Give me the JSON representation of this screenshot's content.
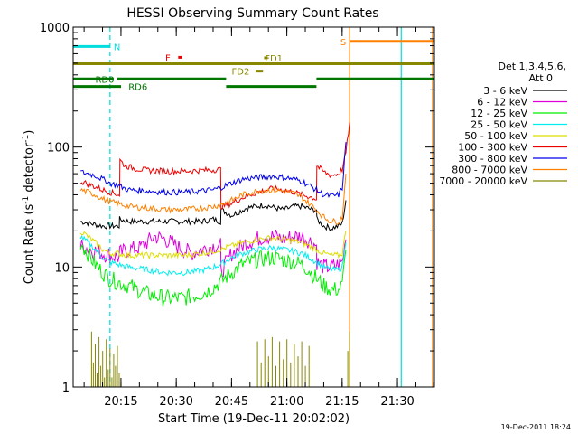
{
  "chart_data": {
    "type": "line",
    "title": "HESSI Observing Summary Count Rates",
    "xlabel": "Start Time (19-Dec-11 20:02:02)",
    "ylabel_main": "Count Rate (s",
    "ylabel_sup1": "-1",
    "ylabel_mid": " detector",
    "ylabel_sup2": "-1",
    "ylabel_end": ")",
    "yscale": "log",
    "ylim": [
      1,
      1000
    ],
    "xlim_minutes": [
      0,
      98
    ],
    "x_ticks": [
      {
        "t": 12.97,
        "label": "20:15"
      },
      {
        "t": 27.97,
        "label": "20:30"
      },
      {
        "t": 42.97,
        "label": "20:45"
      },
      {
        "t": 57.97,
        "label": "21:00"
      },
      {
        "t": 72.97,
        "label": "21:15"
      },
      {
        "t": 87.97,
        "label": "21:30"
      }
    ],
    "y_ticks": [
      {
        "v": 1,
        "label": "1"
      },
      {
        "v": 10,
        "label": "10"
      },
      {
        "v": 100,
        "label": "100"
      },
      {
        "v": 1000,
        "label": "1000"
      }
    ],
    "legend": {
      "header1": "Det 1,3,4,5,6,",
      "header2": "Att 0",
      "placement": "right"
    },
    "series": [
      {
        "name": "3 - 6 keV",
        "color": "#000000",
        "x": [
          2,
          5,
          8,
          10,
          12.5,
          12.6,
          15,
          20,
          25,
          30,
          35,
          38,
          40,
          40.1,
          43,
          47,
          52,
          55,
          57,
          60,
          62,
          65,
          66,
          66.1,
          68,
          70,
          72,
          73,
          74
        ],
        "y": [
          24,
          23,
          22,
          22,
          22,
          25,
          24,
          24,
          24,
          24,
          24,
          25,
          24,
          30,
          27,
          31,
          33,
          31,
          30,
          32,
          32,
          30,
          30,
          25,
          22,
          21,
          22,
          23,
          36
        ]
      },
      {
        "name": "6 - 12 keV",
        "color": "#dd00dd",
        "x": [
          2,
          5,
          8,
          10,
          12.5,
          12.6,
          15,
          18,
          20,
          22,
          25,
          28,
          30,
          32,
          35,
          38,
          40,
          40.1,
          43,
          47,
          52,
          55,
          57,
          60,
          62,
          65,
          66,
          66.1,
          68,
          70,
          72,
          73,
          74
        ],
        "y": [
          15,
          14,
          13,
          12.5,
          12,
          13,
          14,
          14.5,
          16,
          18,
          17,
          15,
          14,
          13,
          14,
          15,
          15,
          9,
          13,
          16,
          18,
          18,
          17,
          18,
          18,
          16,
          15,
          11,
          10,
          10,
          10.5,
          11,
          17
        ]
      },
      {
        "name": "12 - 25 keV",
        "color": "#00ee00",
        "x": [
          2,
          4,
          6,
          8,
          10,
          12,
          15,
          20,
          25,
          30,
          33,
          36,
          38,
          40,
          43,
          46,
          50,
          54,
          57,
          60,
          62,
          64,
          66,
          68,
          70,
          72,
          73,
          74
        ],
        "y": [
          16,
          13,
          10.5,
          9,
          8,
          7.5,
          7,
          6,
          5.5,
          5.5,
          5.8,
          6.2,
          6.8,
          7.5,
          9,
          10.5,
          11.5,
          12,
          11.5,
          11,
          10.5,
          9.5,
          8,
          7,
          6.5,
          6.5,
          7,
          14
        ]
      },
      {
        "name": "25 - 50 keV",
        "color": "#00eeee",
        "x": [
          2,
          4,
          6,
          8,
          10,
          12,
          15,
          20,
          25,
          30,
          33,
          36,
          38,
          40,
          43,
          46,
          50,
          54,
          57,
          60,
          62,
          64,
          66,
          68,
          70,
          72,
          73,
          74
        ],
        "y": [
          18,
          16,
          14,
          12,
          11,
          10.5,
          10,
          9.5,
          9,
          9,
          9.2,
          9.5,
          10,
          10.5,
          12,
          13,
          14,
          14.5,
          14,
          13.5,
          13,
          12,
          11,
          10,
          9.5,
          9.5,
          10,
          16
        ]
      },
      {
        "name": "50 - 100 keV",
        "color": "#dddd00",
        "x": [
          2,
          4,
          6,
          8,
          10,
          12,
          15,
          20,
          25,
          30,
          35,
          40,
          43,
          46,
          50,
          54,
          57,
          60,
          62,
          64,
          66,
          68,
          70,
          72,
          73,
          74
        ],
        "y": [
          20,
          18,
          16,
          14,
          13,
          13,
          12.5,
          12.5,
          12.5,
          12.5,
          13,
          14,
          15,
          16,
          17,
          17.5,
          17,
          16.5,
          16,
          15,
          14,
          13,
          12.5,
          12.5,
          13,
          20
        ]
      },
      {
        "name": "100 - 300 keV",
        "color": "#ee0000",
        "x": [
          2,
          5,
          8,
          10,
          12.6,
          12.7,
          14,
          17,
          20,
          25,
          30,
          35,
          40,
          40.1,
          43,
          46,
          50,
          54,
          57,
          60,
          62,
          65,
          66,
          66.1,
          68,
          70,
          72,
          73,
          74,
          75
        ],
        "y": [
          52,
          48,
          44,
          42,
          40,
          78,
          70,
          66,
          64,
          63,
          63,
          64,
          65,
          32,
          34,
          38,
          42,
          45,
          44,
          42,
          40,
          38,
          37,
          70,
          62,
          58,
          60,
          65,
          90,
          160
        ]
      },
      {
        "name": "300 - 800 keV",
        "color": "#0000ee",
        "x": [
          2,
          4,
          6,
          8,
          10,
          12,
          15,
          20,
          25,
          30,
          35,
          38,
          40,
          43,
          46,
          50,
          54,
          57,
          60,
          62,
          64,
          66,
          68,
          70,
          72,
          73,
          74
        ],
        "y": [
          62,
          60,
          58,
          54,
          50,
          48,
          44,
          43,
          42,
          42,
          43,
          44,
          46,
          50,
          54,
          56,
          57,
          56,
          54,
          52,
          48,
          44,
          40,
          39,
          40,
          45,
          110
        ]
      },
      {
        "name": "800 - 7000 keV",
        "color": "#ff8000",
        "x": [
          2,
          4,
          6,
          8,
          10,
          12,
          15,
          20,
          25,
          30,
          35,
          38,
          40,
          43,
          46,
          50,
          54,
          57,
          60,
          62,
          64,
          66,
          68,
          70,
          72,
          73,
          74
        ],
        "y": [
          44,
          42,
          40,
          37,
          35,
          34,
          32,
          31,
          30,
          30,
          31,
          32,
          33,
          36,
          40,
          43,
          44,
          43,
          41,
          38,
          34,
          30,
          26,
          24,
          24,
          26,
          60
        ]
      },
      {
        "name": "7000 - 20000 keV",
        "color": "#888800",
        "x": [
          5,
          5.5,
          6,
          6.5,
          7,
          7.5,
          8,
          8.5,
          9,
          9.5,
          10,
          10.5,
          11,
          11.5,
          12,
          12.5,
          50,
          51,
          52,
          53,
          54,
          55,
          56,
          57,
          58,
          59,
          60,
          61,
          62,
          63,
          64,
          74.5,
          75
        ],
        "y": [
          2.9,
          1.6,
          2.3,
          1.3,
          2.6,
          1.5,
          2.0,
          1.2,
          2.5,
          1.4,
          2.1,
          1.2,
          1.9,
          1.5,
          2.2,
          1.3,
          2.4,
          1.6,
          2.5,
          1.8,
          2.6,
          1.5,
          2.4,
          1.7,
          2.5,
          1.6,
          2.3,
          1.8,
          2.4,
          1.5,
          2.2,
          2.0,
          2.9
        ]
      }
    ],
    "flags": [
      {
        "label": "N",
        "color": "#00dddd",
        "segments": [
          [
            0,
            10
          ]
        ],
        "level": 690,
        "label_t": 11
      },
      {
        "label": "S",
        "color": "#ff8000",
        "segments": [
          [
            75,
            98
          ]
        ],
        "level": 760,
        "label_t": 72.5
      },
      {
        "label": "F",
        "color": "#ee0000",
        "segments": [
          [
            28.5,
            29.5
          ]
        ],
        "level": 560,
        "label_t": 25
      },
      {
        "label": "FD1",
        "color": "#888800",
        "segments": [
          [
            51.8,
            52.8
          ]
        ],
        "level": 555,
        "label_t": 52
      },
      {
        "label": "FD2",
        "color": "#888800",
        "segments": [
          [
            49.5,
            51.5
          ]
        ],
        "level": 430,
        "label_t": 43
      },
      {
        "label": "RD0",
        "color": "#007700",
        "segments": [
          [
            0,
            11
          ],
          [
            12,
            41.5
          ],
          [
            66,
            98
          ]
        ],
        "level": 370,
        "label_t": 6
      },
      {
        "label": "RD6",
        "color": "#007700",
        "segments": [
          [
            0,
            13
          ],
          [
            41.5,
            66
          ]
        ],
        "level": 320,
        "label_t": 15
      },
      {
        "label": "",
        "color": "#888800",
        "segments": [
          [
            0,
            98
          ]
        ],
        "level": 495,
        "label_t": 0
      }
    ],
    "vlines": [
      {
        "t": 10,
        "color": "#00dddd",
        "dashed": true
      },
      {
        "t": 75,
        "color": "#ff8000",
        "dashed": false
      },
      {
        "t": 89,
        "color": "#00dddd",
        "dashed": false
      },
      {
        "t": 97.5,
        "color": "#ff8000",
        "dashed": false
      }
    ]
  },
  "footer": {
    "timestamp": "19-Dec-2011 18:24"
  }
}
